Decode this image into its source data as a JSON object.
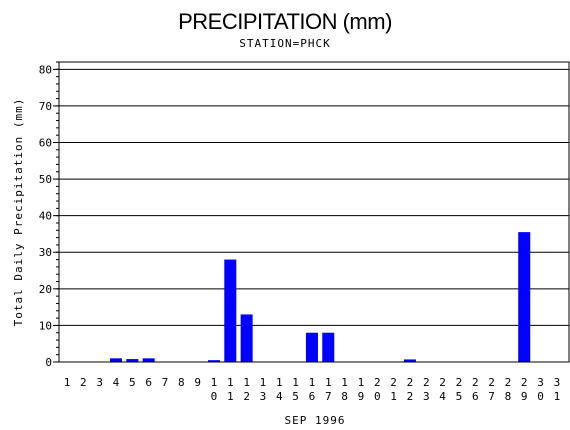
{
  "chart_data": {
    "type": "bar",
    "title": "PRECIPITATION (mm)",
    "subtitle": "STATION=PHCK",
    "xlabel": "SEP 1996",
    "ylabel": "Total Daily Precipitation (mm)",
    "categories": [
      "1",
      "2",
      "3",
      "4",
      "5",
      "6",
      "7",
      "8",
      "9",
      "10",
      "11",
      "12",
      "13",
      "14",
      "15",
      "16",
      "17",
      "18",
      "19",
      "20",
      "21",
      "22",
      "23",
      "24",
      "25",
      "26",
      "27",
      "28",
      "29",
      "30",
      "31"
    ],
    "values": [
      0,
      0,
      0,
      1,
      0.8,
      1,
      0,
      0,
      0,
      0.5,
      28,
      13,
      0,
      0,
      0,
      8,
      8,
      0,
      0,
      0,
      0,
      0.7,
      0,
      0,
      0,
      0,
      0,
      0,
      35.5,
      0,
      0
    ],
    "ylim": [
      0,
      82
    ],
    "yticks": [
      "0",
      "10",
      "20",
      "30",
      "40",
      "50",
      "60",
      "70",
      "80"
    ],
    "grid": true,
    "bar_color": "#0000ff"
  }
}
